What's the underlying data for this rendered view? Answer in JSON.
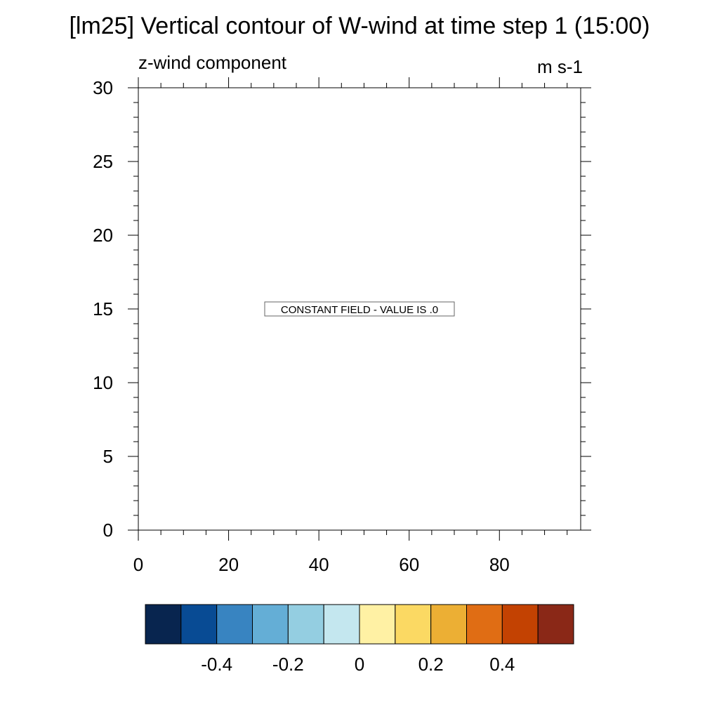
{
  "title": "[lm25] Vertical contour of W-wind at time step 1 (15:00)",
  "left_string": "z-wind component",
  "right_string": "m s-1",
  "constant_field_label": "CONSTANT FIELD - VALUE IS .0",
  "chart_data": {
    "type": "heatmap",
    "title": "[lm25] Vertical contour of W-wind at time step 1 (15:00)",
    "xlabel": "",
    "ylabel": "",
    "xlim": [
      0,
      98
    ],
    "ylim": [
      0,
      30
    ],
    "x_ticks": [
      0,
      20,
      40,
      60,
      80
    ],
    "y_ticks": [
      0,
      5,
      10,
      15,
      20,
      25,
      30
    ],
    "constant_value": 0,
    "grid": false,
    "colorbar": {
      "colors": [
        "#08254f",
        "#084b94",
        "#3884c1",
        "#64aed6",
        "#94cee1",
        "#c4e7ef",
        "#fff1a4",
        "#fbd963",
        "#ecaf34",
        "#e06d14",
        "#c34202",
        "#8a2817"
      ],
      "labels": [
        "-0.4",
        "-0.2",
        "0",
        "0.2",
        "0.4"
      ],
      "label_boundaries": [
        2,
        4,
        6,
        8,
        10
      ]
    }
  }
}
